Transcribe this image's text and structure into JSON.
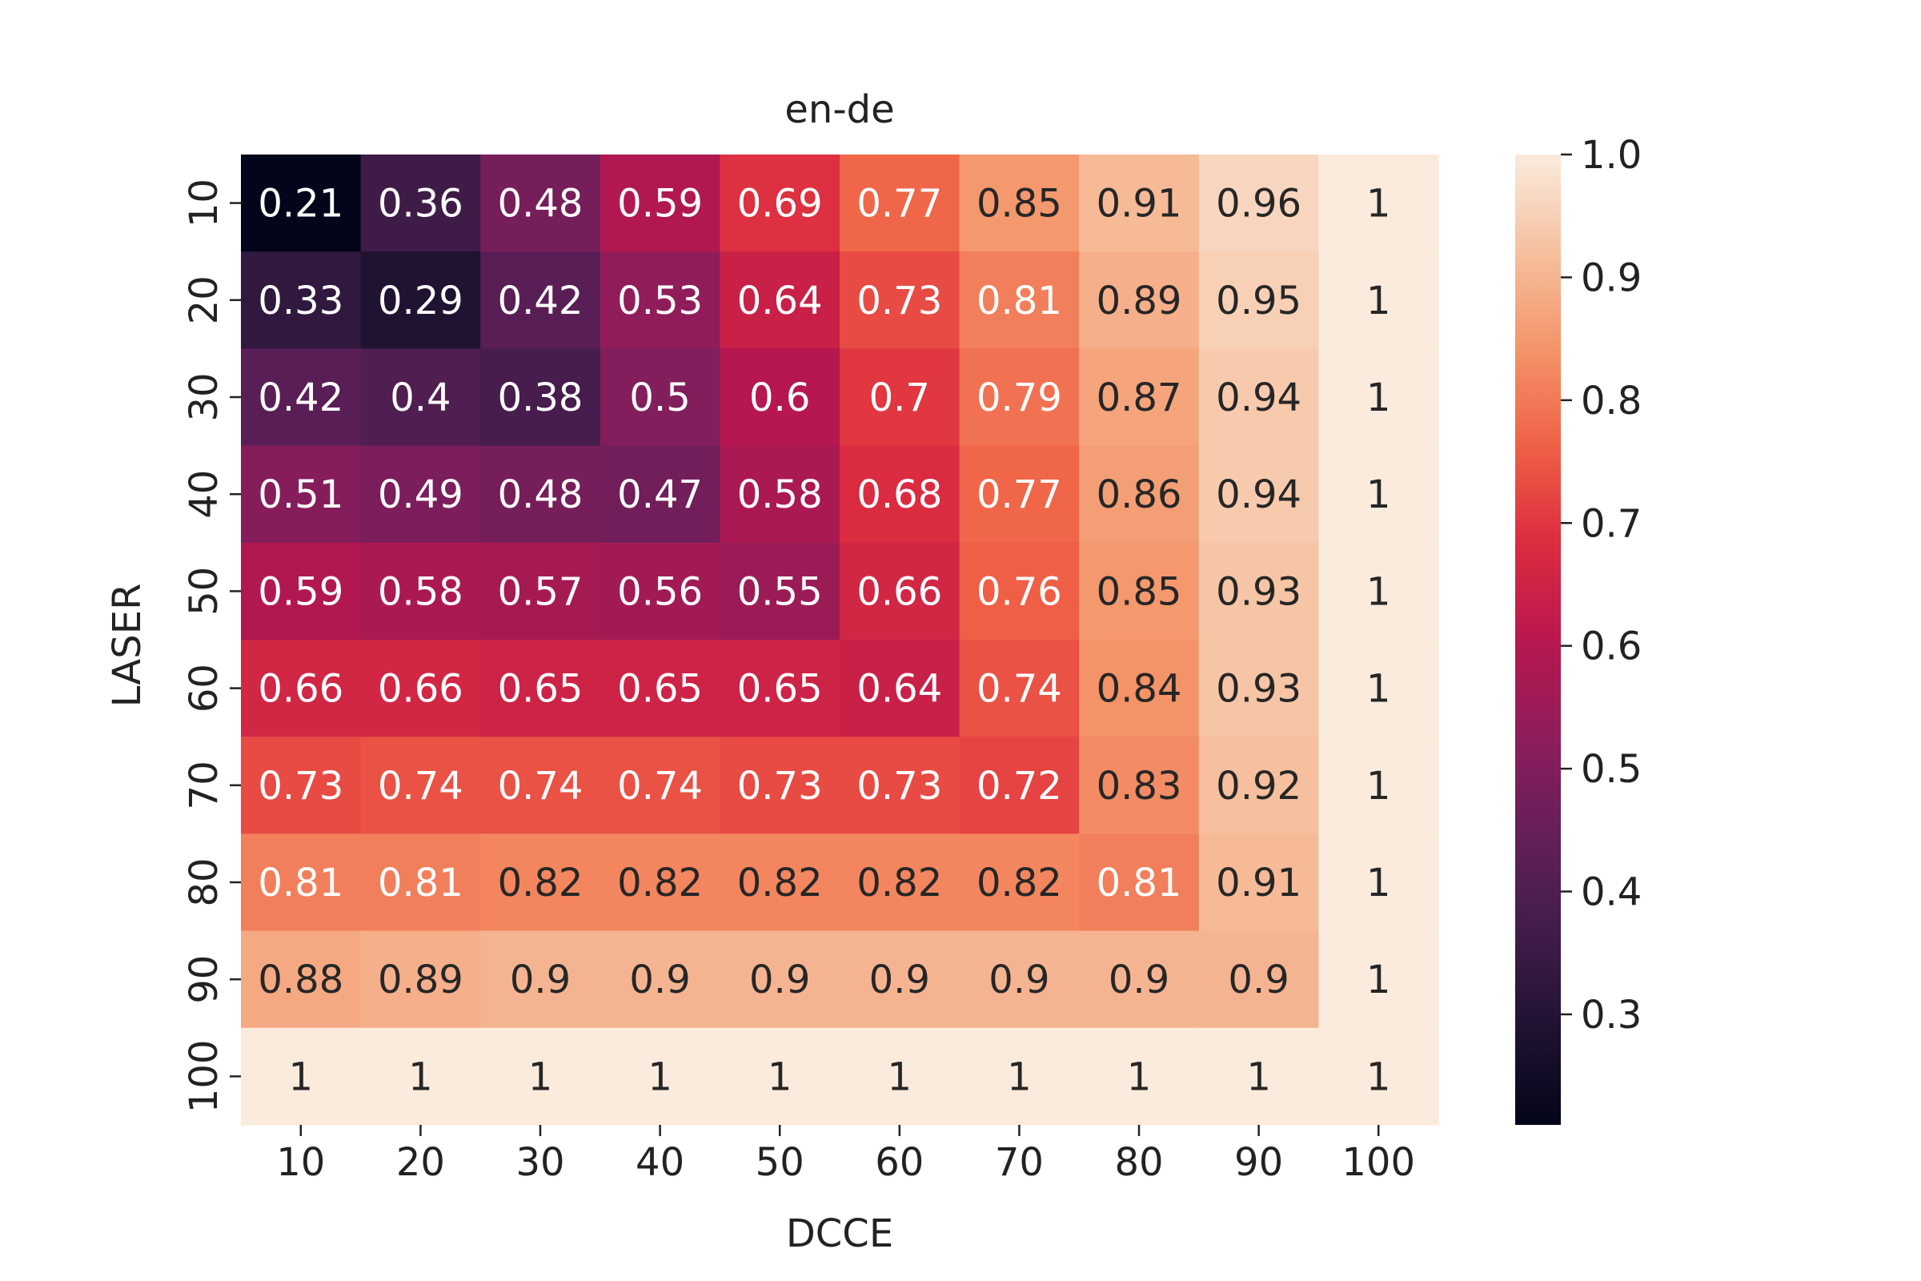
{
  "chart_data": {
    "type": "heatmap",
    "title": "en-de",
    "xlabel": "DCCE",
    "ylabel": "LASER",
    "x_categories": [
      "10",
      "20",
      "30",
      "40",
      "50",
      "60",
      "70",
      "80",
      "90",
      "100"
    ],
    "y_categories": [
      "10",
      "20",
      "30",
      "40",
      "50",
      "60",
      "70",
      "80",
      "90",
      "100"
    ],
    "values": [
      [
        0.21,
        0.36,
        0.48,
        0.59,
        0.69,
        0.77,
        0.85,
        0.91,
        0.96,
        1
      ],
      [
        0.33,
        0.29,
        0.42,
        0.53,
        0.64,
        0.73,
        0.81,
        0.89,
        0.95,
        1
      ],
      [
        0.42,
        0.4,
        0.38,
        0.5,
        0.6,
        0.7,
        0.79,
        0.87,
        0.94,
        1
      ],
      [
        0.51,
        0.49,
        0.48,
        0.47,
        0.58,
        0.68,
        0.77,
        0.86,
        0.94,
        1
      ],
      [
        0.59,
        0.58,
        0.57,
        0.56,
        0.55,
        0.66,
        0.76,
        0.85,
        0.93,
        1
      ],
      [
        0.66,
        0.66,
        0.65,
        0.65,
        0.65,
        0.64,
        0.74,
        0.84,
        0.93,
        1
      ],
      [
        0.73,
        0.74,
        0.74,
        0.74,
        0.73,
        0.73,
        0.72,
        0.83,
        0.92,
        1
      ],
      [
        0.81,
        0.81,
        0.82,
        0.82,
        0.82,
        0.82,
        0.82,
        0.81,
        0.91,
        1
      ],
      [
        0.88,
        0.89,
        0.9,
        0.9,
        0.9,
        0.9,
        0.9,
        0.9,
        0.9,
        1
      ],
      [
        1,
        1,
        1,
        1,
        1,
        1,
        1,
        1,
        1,
        1
      ]
    ],
    "colorbar": {
      "min": 0.21,
      "max": 1.0,
      "ticks": [
        1.0,
        0.9,
        0.8,
        0.7,
        0.6,
        0.5,
        0.4,
        0.3
      ],
      "tick_labels": [
        "1.0",
        "0.9",
        "0.8",
        "0.7",
        "0.6",
        "0.5",
        "0.4",
        "0.3"
      ]
    },
    "colormap": "rocket",
    "grid": false
  }
}
